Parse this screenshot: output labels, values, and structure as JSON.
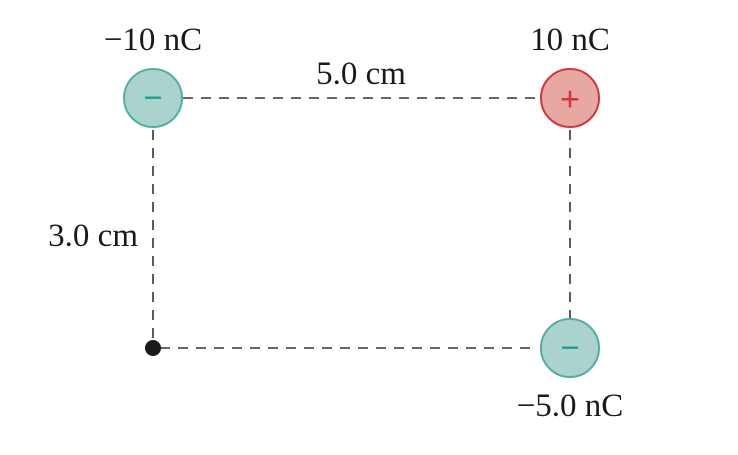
{
  "charges": {
    "top_left": {
      "label": "−10 nC",
      "sign": "−"
    },
    "top_right": {
      "label": "10 nC",
      "sign": "+"
    },
    "bottom_right": {
      "label": "−5.0 nC",
      "sign": "−"
    }
  },
  "dimensions": {
    "horizontal": "5.0 cm",
    "vertical": "3.0 cm"
  },
  "colors": {
    "negative_fill": "#a9d3cc",
    "negative_stroke": "#4fb0a1",
    "negative_sign": "#16a08f",
    "positive_fill": "#e8a8a2",
    "positive_stroke": "#d3343c",
    "positive_sign": "#d3343c",
    "dash": "#333333",
    "text": "#1a1a1a"
  }
}
